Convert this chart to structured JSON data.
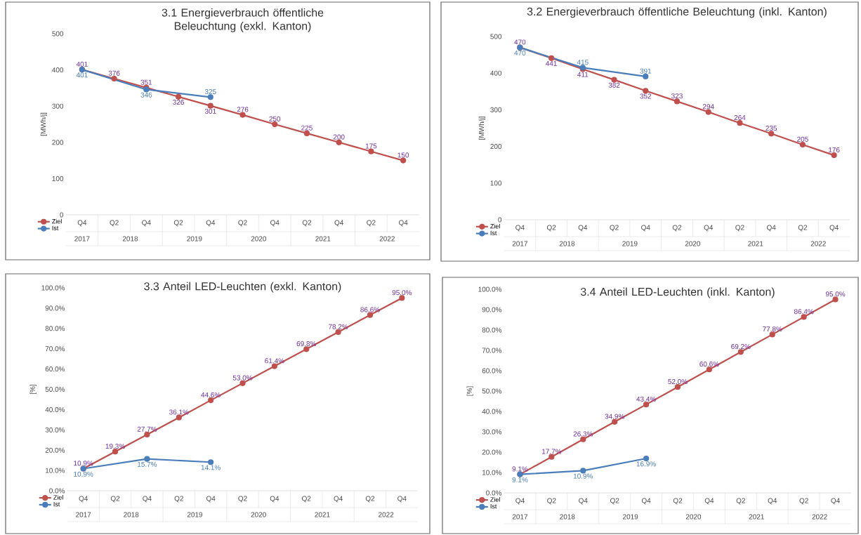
{
  "chart_data": [
    {
      "type": "line",
      "title": "3.1 Energieverbrauch öffentliche Beleuchtung (exkl. Kanton)",
      "ylabel": "[MWh/j]",
      "categories": [
        "Q4",
        "Q2",
        "Q4",
        "Q2",
        "Q4",
        "Q2",
        "Q4",
        "Q2",
        "Q4",
        "Q2",
        "Q4"
      ],
      "annotations": [
        "2017",
        "2018",
        "2019",
        "2020",
        "2021",
        "2022"
      ],
      "series": [
        {
          "name": "Ziel",
          "color": "#c0504d",
          "values": [
            401,
            376,
            351,
            326,
            301,
            276,
            250,
            225,
            200,
            175,
            150
          ]
        },
        {
          "name": "Ist",
          "color": "#4a7ebb",
          "values": [
            401,
            null,
            346,
            null,
            325,
            null,
            null,
            null,
            null,
            null,
            null
          ]
        }
      ],
      "ylim": [
        0,
        500
      ],
      "yticks": [
        0,
        100,
        200,
        300,
        400,
        500
      ],
      "data_labels": true,
      "legend": "bottom left",
      "marker": "circle",
      "line_style": "solid"
    },
    {
      "type": "line",
      "title": "3.2 Energieverbrauch öffentliche Beleuchtung (inkl. Kanton)",
      "ylabel": "[MWh/j]",
      "categories": [
        "Q4",
        "Q2",
        "Q4",
        "Q2",
        "Q4",
        "Q2",
        "Q4",
        "Q2",
        "Q4",
        "Q2",
        "Q4"
      ],
      "annotations": [
        "2017",
        "2018",
        "2019",
        "2020",
        "2021",
        "2022"
      ],
      "series": [
        {
          "name": "Ziel",
          "color": "#c0504d",
          "values": [
            470,
            441,
            411,
            382,
            352,
            323,
            294,
            264,
            235,
            205,
            176
          ]
        },
        {
          "name": "Ist",
          "color": "#4a7ebb",
          "values": [
            470,
            null,
            415,
            null,
            391,
            null,
            null,
            null,
            null,
            null,
            null
          ]
        }
      ],
      "ylim": [
        0,
        500
      ],
      "yticks": [
        0,
        100,
        200,
        300,
        400,
        500
      ],
      "data_labels": true,
      "legend": "bottom left",
      "marker": "circle",
      "line_style": "solid"
    },
    {
      "type": "line",
      "title": "3.3 Anteil LED-Leuchten (exkl. Kanton)",
      "ylabel": "[%]",
      "categories": [
        "Q4",
        "Q2",
        "Q4",
        "Q2",
        "Q4",
        "Q2",
        "Q4",
        "Q2",
        "Q4",
        "Q2",
        "Q4"
      ],
      "annotations": [
        "2017",
        "2018",
        "2019",
        "2020",
        "2021",
        "2022"
      ],
      "series": [
        {
          "name": "Ziel",
          "color": "#c0504d",
          "values": [
            10.9,
            19.3,
            27.7,
            36.1,
            44.6,
            53.0,
            61.4,
            69.8,
            78.2,
            86.6,
            95.0
          ],
          "value_labels": [
            "10.9%",
            "19.3%",
            "27.7%",
            "36.1%",
            "44.6%",
            "53.0%",
            "61.4%",
            "69.8%",
            "78.2%",
            "86.6%",
            "95.0%"
          ]
        },
        {
          "name": "Ist",
          "color": "#4a7ebb",
          "values": [
            10.9,
            null,
            15.7,
            null,
            14.1,
            null,
            null,
            null,
            null,
            null,
            null
          ],
          "value_labels": [
            "10.9%",
            null,
            "15.7%",
            null,
            "14.1%",
            null,
            null,
            null,
            null,
            null,
            null
          ]
        }
      ],
      "ylim": [
        0,
        100
      ],
      "yticks": [
        {
          "value": 0,
          "label": "0.0%"
        },
        {
          "value": 10,
          "label": "10.0%"
        },
        {
          "value": 20,
          "label": "20.0%"
        },
        {
          "value": 30,
          "label": "30.0%"
        },
        {
          "value": 40,
          "label": "40.0%"
        },
        {
          "value": 50,
          "label": "50.0%"
        },
        {
          "value": 60,
          "label": "60.0%"
        },
        {
          "value": 70,
          "label": "70.0%"
        },
        {
          "value": 80,
          "label": "80.0%"
        },
        {
          "value": 90,
          "label": "90.0%"
        },
        {
          "value": 100,
          "label": "100.0%"
        }
      ],
      "legend": "bottom left",
      "marker": "circle",
      "line_style": "solid"
    },
    {
      "type": "line",
      "title": "3.4 Anteil LED-Leuchten (inkl. Kanton)",
      "ylabel": "[%]",
      "categories": [
        "Q4",
        "Q2",
        "Q4",
        "Q2",
        "Q4",
        "Q2",
        "Q4",
        "Q2",
        "Q4",
        "Q2",
        "Q4"
      ],
      "annotations": [
        "2017",
        "2018",
        "2019",
        "2020",
        "2021",
        "2022"
      ],
      "series": [
        {
          "name": "Ziel",
          "color": "#c0504d",
          "values": [
            9.1,
            17.7,
            26.3,
            34.9,
            43.4,
            52.0,
            60.6,
            69.2,
            77.8,
            86.4,
            95.0
          ],
          "value_labels": [
            "9.1%",
            "17.7%",
            "26.3%",
            "34.9%",
            "43.4%",
            "52.0%",
            "60.6%",
            "69.2%",
            "77.8%",
            "86.4%",
            "95.0%"
          ]
        },
        {
          "name": "Ist",
          "color": "#4a7ebb",
          "values": [
            9.1,
            null,
            10.9,
            null,
            16.9,
            null,
            null,
            null,
            null,
            null,
            null
          ],
          "value_labels": [
            "9.1%",
            null,
            "10.9%",
            null,
            "16.9%",
            null,
            null,
            null,
            null,
            null,
            null
          ]
        }
      ],
      "ylim": [
        0,
        100
      ],
      "yticks": [
        {
          "value": 0,
          "label": "0.0%"
        },
        {
          "value": 10,
          "label": "10.0%"
        },
        {
          "value": 20,
          "label": "20.0%"
        },
        {
          "value": 30,
          "label": "30.0%"
        },
        {
          "value": 40,
          "label": "40.0%"
        },
        {
          "value": 50,
          "label": "50.0%"
        },
        {
          "value": 60,
          "label": "60.0%"
        },
        {
          "value": 70,
          "label": "70.0%"
        },
        {
          "value": 80,
          "label": "80.0%"
        },
        {
          "value": 90,
          "label": "90.0%"
        },
        {
          "value": 100,
          "label": "100.0%"
        }
      ],
      "legend": "bottom left",
      "marker": "circle",
      "line_style": "solid"
    }
  ]
}
